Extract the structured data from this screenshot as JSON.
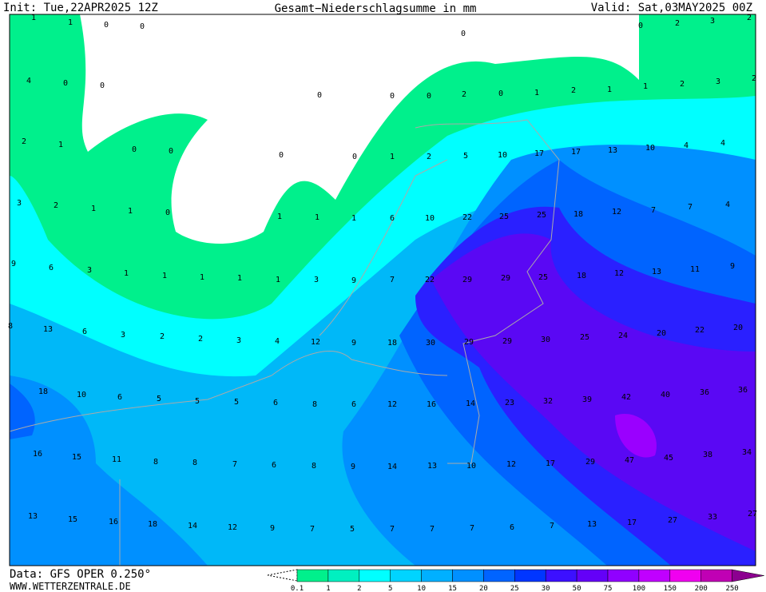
{
  "header": {
    "init": "Init: Tue,22APR2025 12Z",
    "title": "Gesamt−Niederschlagsumme in mm",
    "valid": "Valid: Sat,03MAY2025 00Z"
  },
  "footer": {
    "data": "Data: GFS OPER 0.250°",
    "site": "WWW.WETTERZENTRALE.DE"
  },
  "grid": {
    "rows": [
      [
        1,
        1,
        0,
        0,
        0,
        0,
        2,
        3,
        2
      ],
      [
        4,
        0,
        0,
        0,
        0,
        0,
        2,
        0,
        1,
        2,
        1,
        1,
        2,
        3,
        2
      ],
      [
        2,
        1,
        0,
        0,
        0,
        0,
        1,
        2,
        5,
        10,
        17,
        17,
        13,
        10,
        4,
        4
      ],
      [
        3,
        2,
        1,
        1,
        0,
        1,
        1,
        1,
        6,
        10,
        22,
        25,
        25,
        18,
        12,
        7,
        7,
        4
      ],
      [
        9,
        6,
        3,
        1,
        1,
        1,
        1,
        1,
        3,
        9,
        7,
        22,
        29,
        29,
        25,
        18,
        12,
        13,
        11,
        9
      ],
      [
        8,
        13,
        6,
        3,
        2,
        2,
        3,
        4,
        12,
        9,
        18,
        30,
        29,
        29,
        30,
        25,
        24,
        20,
        22,
        20
      ],
      [
        18,
        10,
        6,
        5,
        5,
        5,
        6,
        8,
        6,
        12,
        16,
        14,
        23,
        32,
        39,
        42,
        40,
        36,
        36
      ],
      [
        16,
        15,
        11,
        8,
        8,
        7,
        6,
        8,
        9,
        14,
        13,
        10,
        12,
        17,
        29,
        47,
        45,
        38,
        34
      ],
      [
        13,
        15,
        16,
        18,
        14,
        12,
        9,
        7,
        5,
        7,
        7,
        7,
        6,
        7,
        13,
        17,
        27,
        33,
        27
      ]
    ]
  },
  "legend": {
    "levels": [
      0.1,
      1,
      2,
      5,
      10,
      15,
      20,
      25,
      30,
      50,
      75,
      100,
      150,
      200,
      250
    ],
    "colors": [
      "#00f08c",
      "#00f0c0",
      "#00ffff",
      "#00d4ff",
      "#00b0ff",
      "#0090ff",
      "#0064ff",
      "#0036ff",
      "#3c10ff",
      "#6400f8",
      "#9000ff",
      "#c000ff",
      "#f000f0",
      "#c000b4",
      "#8c0090"
    ]
  }
}
